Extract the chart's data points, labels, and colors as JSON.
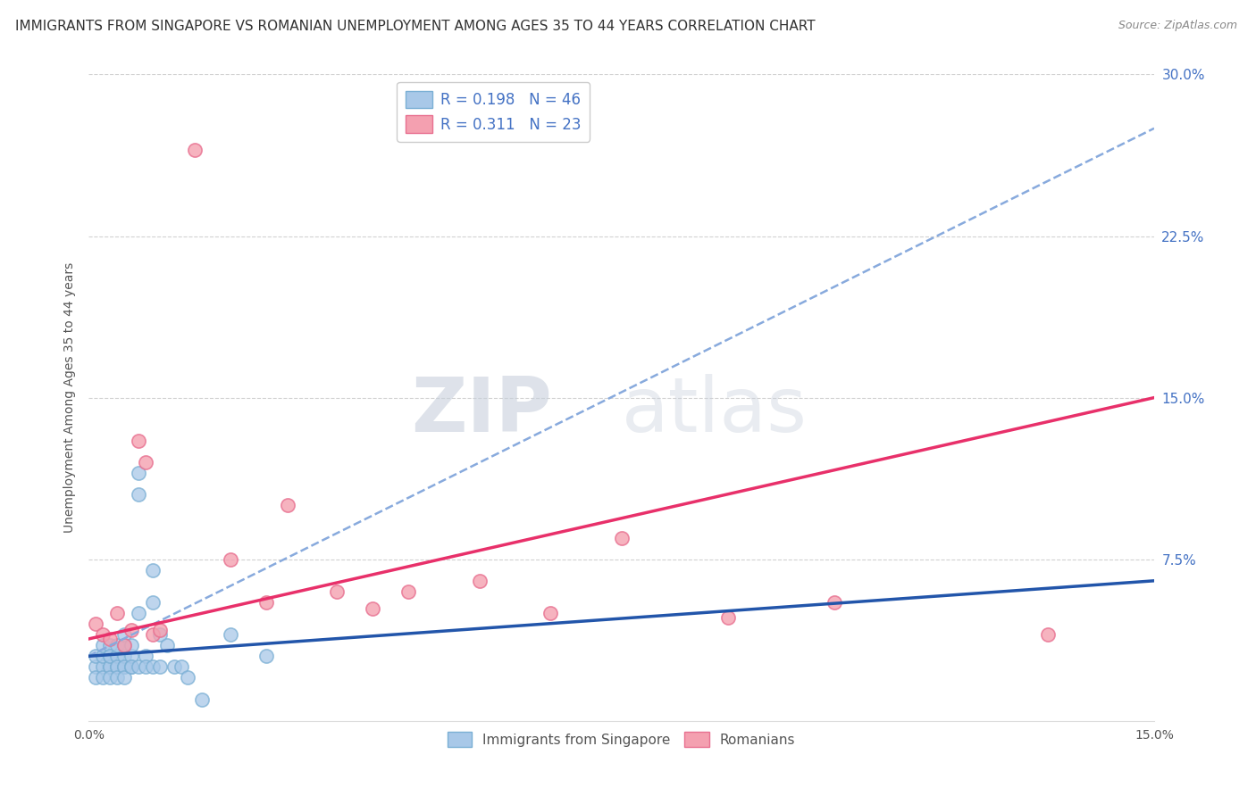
{
  "title": "IMMIGRANTS FROM SINGAPORE VS ROMANIAN UNEMPLOYMENT AMONG AGES 35 TO 44 YEARS CORRELATION CHART",
  "source": "Source: ZipAtlas.com",
  "ylabel": "Unemployment Among Ages 35 to 44 years",
  "watermark_zip": "ZIP",
  "watermark_atlas": "atlas",
  "xlim": [
    0.0,
    0.15
  ],
  "ylim": [
    0.0,
    0.3
  ],
  "xticks": [
    0.0,
    0.03,
    0.06,
    0.09,
    0.12,
    0.15
  ],
  "yticks_right": [
    0.0,
    0.075,
    0.15,
    0.225,
    0.3
  ],
  "ytick_right_labels": [
    "",
    "7.5%",
    "15.0%",
    "22.5%",
    "30.0%"
  ],
  "series1": {
    "name": "Immigrants from Singapore",
    "R": 0.198,
    "N": 46,
    "color_fill": "#a8c8e8",
    "color_edge": "#7aafd4",
    "color_line": "#2255aa",
    "x": [
      0.001,
      0.001,
      0.001,
      0.002,
      0.002,
      0.002,
      0.002,
      0.003,
      0.003,
      0.003,
      0.003,
      0.003,
      0.003,
      0.004,
      0.004,
      0.004,
      0.004,
      0.004,
      0.005,
      0.005,
      0.005,
      0.005,
      0.005,
      0.005,
      0.006,
      0.006,
      0.006,
      0.006,
      0.007,
      0.007,
      0.007,
      0.007,
      0.008,
      0.008,
      0.009,
      0.009,
      0.009,
      0.01,
      0.01,
      0.011,
      0.012,
      0.013,
      0.014,
      0.016,
      0.02,
      0.025
    ],
    "y": [
      0.025,
      0.03,
      0.02,
      0.025,
      0.03,
      0.035,
      0.02,
      0.025,
      0.03,
      0.035,
      0.025,
      0.02,
      0.03,
      0.025,
      0.03,
      0.035,
      0.025,
      0.02,
      0.025,
      0.03,
      0.035,
      0.025,
      0.02,
      0.04,
      0.025,
      0.03,
      0.035,
      0.025,
      0.115,
      0.105,
      0.05,
      0.025,
      0.03,
      0.025,
      0.07,
      0.055,
      0.025,
      0.04,
      0.025,
      0.035,
      0.025,
      0.025,
      0.02,
      0.01,
      0.04,
      0.03
    ]
  },
  "series2": {
    "name": "Romanians",
    "R": 0.311,
    "N": 23,
    "color_fill": "#f4a0b0",
    "color_edge": "#e87090",
    "color_line": "#e8306a",
    "x": [
      0.001,
      0.002,
      0.003,
      0.004,
      0.005,
      0.006,
      0.007,
      0.008,
      0.009,
      0.01,
      0.015,
      0.02,
      0.025,
      0.028,
      0.035,
      0.04,
      0.045,
      0.055,
      0.065,
      0.075,
      0.09,
      0.105,
      0.135
    ],
    "y": [
      0.045,
      0.04,
      0.038,
      0.05,
      0.035,
      0.042,
      0.13,
      0.12,
      0.04,
      0.042,
      0.265,
      0.075,
      0.055,
      0.1,
      0.06,
      0.052,
      0.06,
      0.065,
      0.05,
      0.085,
      0.048,
      0.055,
      0.04
    ]
  },
  "line_slope1": 0.198,
  "line_slope2": 0.311,
  "background_color": "#ffffff",
  "grid_color": "#cccccc",
  "title_fontsize": 11,
  "axis_label_fontsize": 10,
  "tick_fontsize": 10,
  "legend_fontsize": 12
}
